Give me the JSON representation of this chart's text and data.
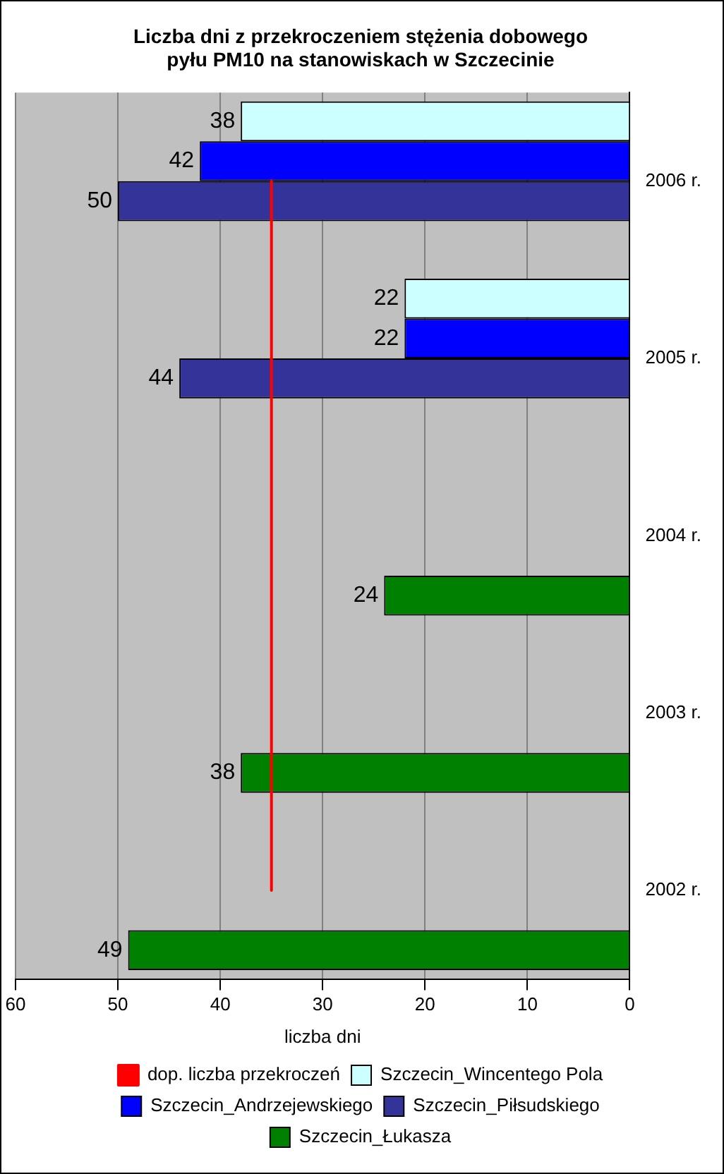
{
  "chart_data": {
    "type": "bar",
    "orientation": "horizontal",
    "title": "Liczba dni z przekroczeniem stężenia dobowego pyłu PM10 na stanowiskach w Szczecinie",
    "xlabel": "liczba dni",
    "categories": [
      "2006 r.",
      "2005 r.",
      "2004 r.",
      "2003 r.",
      "2002 r."
    ],
    "series": [
      {
        "name": "Szczecin_Wincentego Pola",
        "color": "#ccffff",
        "values": [
          38,
          22,
          null,
          null,
          null
        ],
        "value_labels": [
          "38",
          "22",
          null,
          null,
          null
        ]
      },
      {
        "name": "Szczecin_Andrzejewskiego",
        "color": "#0000ff",
        "values": [
          42,
          22,
          null,
          null,
          null
        ],
        "value_labels": [
          "42",
          "22",
          null,
          null,
          null
        ]
      },
      {
        "name": "Szczecin_Piłsudskiego",
        "color": "#333399",
        "values": [
          50,
          44,
          null,
          null,
          null
        ],
        "value_labels": [
          "50",
          "44",
          null,
          null,
          null
        ]
      },
      {
        "name": "Szczecin_Łukasza",
        "color": "#008000",
        "values": [
          null,
          null,
          24,
          38,
          49
        ],
        "value_labels": [
          null,
          null,
          "24",
          "38",
          "49"
        ]
      },
      {
        "name": "dop. liczba przekroczeń",
        "type": "line",
        "color": "#ff0000",
        "values": [
          35,
          35,
          35,
          35,
          35
        ]
      }
    ],
    "xlim": [
      60,
      0
    ],
    "xticks": [
      0,
      10,
      20,
      30,
      40,
      50,
      60
    ],
    "grid": "x",
    "legend": "bottom",
    "marker": "none"
  }
}
